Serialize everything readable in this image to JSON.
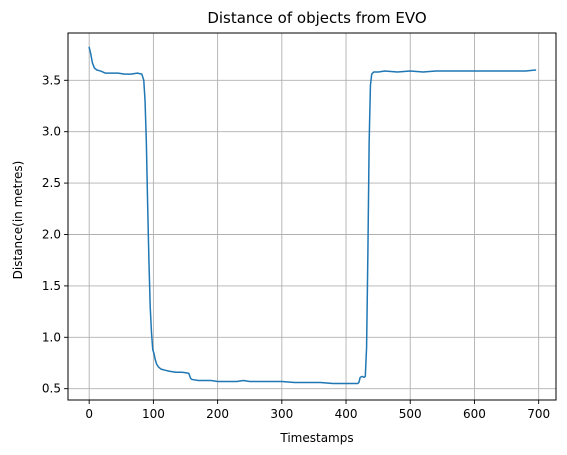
{
  "chart_data": {
    "type": "line",
    "title": "Distance of objects from EVO",
    "xlabel": "Timestamps",
    "ylabel": "Distance(in metres)",
    "xlim": [
      -33,
      727
    ],
    "ylim": [
      0.39,
      3.96
    ],
    "xticks": [
      0,
      100,
      200,
      300,
      400,
      500,
      600,
      700
    ],
    "xtick_labels": [
      "0",
      "100",
      "200",
      "300",
      "400",
      "500",
      "600",
      "700"
    ],
    "yticks": [
      0.5,
      1.0,
      1.5,
      2.0,
      2.5,
      3.0,
      3.5
    ],
    "ytick_labels": [
      "0.5",
      "1.0",
      "1.5",
      "2.0",
      "2.5",
      "3.0",
      "3.5"
    ],
    "grid": true,
    "series_color": "#1f77b4",
    "series": [
      {
        "x": [
          0,
          2,
          5,
          8,
          12,
          18,
          25,
          35,
          45,
          55,
          65,
          75,
          82,
          85,
          87,
          89,
          91,
          93,
          95,
          97,
          99,
          101,
          103,
          105,
          108,
          112,
          118,
          125,
          135,
          145,
          155,
          158,
          160,
          170,
          180,
          190,
          200,
          210,
          220,
          230,
          240,
          250,
          260,
          270,
          280,
          290,
          300,
          320,
          340,
          360,
          380,
          400,
          410,
          418,
          420,
          422,
          425,
          428,
          430,
          432,
          434,
          436,
          438,
          440,
          443,
          446,
          450,
          460,
          480,
          500,
          520,
          540,
          560,
          580,
          600,
          620,
          640,
          660,
          680,
          695
        ],
        "y": [
          3.82,
          3.77,
          3.67,
          3.62,
          3.6,
          3.59,
          3.57,
          3.57,
          3.57,
          3.56,
          3.56,
          3.57,
          3.56,
          3.5,
          3.3,
          2.9,
          2.3,
          1.75,
          1.3,
          1.05,
          0.88,
          0.84,
          0.78,
          0.74,
          0.71,
          0.69,
          0.68,
          0.67,
          0.66,
          0.66,
          0.65,
          0.6,
          0.59,
          0.58,
          0.58,
          0.58,
          0.57,
          0.57,
          0.57,
          0.57,
          0.58,
          0.57,
          0.57,
          0.57,
          0.57,
          0.57,
          0.57,
          0.56,
          0.56,
          0.56,
          0.55,
          0.55,
          0.55,
          0.55,
          0.56,
          0.61,
          0.62,
          0.61,
          0.62,
          0.9,
          1.8,
          2.9,
          3.45,
          3.56,
          3.58,
          3.58,
          3.58,
          3.59,
          3.58,
          3.59,
          3.58,
          3.59,
          3.59,
          3.59,
          3.59,
          3.59,
          3.59,
          3.59,
          3.59,
          3.6
        ]
      }
    ]
  }
}
